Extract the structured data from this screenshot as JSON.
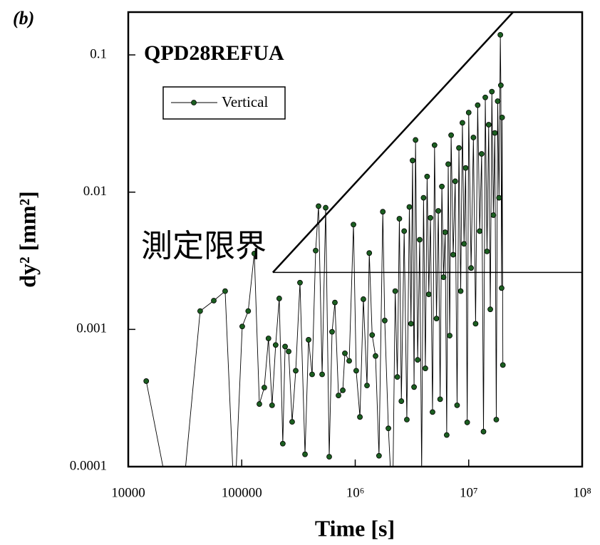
{
  "chart_data": {
    "type": "line",
    "panel_label": "(b)",
    "title": "QPD28REFUA",
    "annotation": "測定限界",
    "xlabel": "Time [s]",
    "ylabel": "dy² [mm²]",
    "log_x": true,
    "log_y": true,
    "xlim": [
      10000,
      100000000
    ],
    "ylim": [
      0.0001,
      0.205
    ],
    "xticks": [
      10000,
      100000,
      {
        "value": 1000000,
        "label": "10⁶"
      },
      {
        "value": 10000000,
        "label": "10⁷"
      },
      {
        "value": 100000000,
        "label": "10⁸"
      }
    ],
    "yticks": [
      0.0001,
      0.001,
      0.01,
      0.1
    ],
    "legend_position": "upper-left",
    "x": [
      14400,
      23800,
      29600,
      43000,
      56700,
      71400,
      86300,
      101000,
      114000,
      129000,
      143000,
      158000,
      172000,
      185000,
      199000,
      214000,
      230000,
      241000,
      259000,
      278000,
      299000,
      326000,
      361000,
      388000,
      417000,
      448000,
      475000,
      511000,
      549000,
      590000,
      625000,
      662000,
      712000,
      777000,
      811000,
      885000,
      965000,
      1020000,
      1100000,
      1180000,
      1270000,
      1330000,
      1410000,
      1510000,
      1620000,
      1750000,
      1820000,
      1960000,
      2050000,
      2150000,
      2250000,
      2350000,
      2450000,
      2550000,
      2700000,
      2850000,
      3000000,
      3100000,
      3200000,
      3300000,
      3400000,
      3550000,
      3700000,
      3850000,
      4000000,
      4150000,
      4300000,
      4450000,
      4600000,
      4800000,
      5000000,
      5200000,
      5400000,
      5600000,
      5800000,
      6000000,
      6200000,
      6400000,
      6600000,
      6800000,
      7000000,
      7300000,
      7600000,
      7900000,
      8200000,
      8500000,
      8800000,
      9100000,
      9400000,
      9700000,
      10000000,
      10500000,
      11000000,
      11500000,
      12000000,
      12500000,
      13000000,
      13500000,
      14000000,
      14500000,
      15000000,
      15500000,
      16000000,
      16500000,
      17000000,
      17500000,
      18000000,
      18500000,
      19000000,
      19200000,
      19500000,
      19700000,
      20000000
    ],
    "series": [
      {
        "name": "Vertical",
        "color": "#1b5e20",
        "values": [
          0.00042,
          5e-05,
          5e-05,
          0.00136,
          0.00162,
          0.0019,
          5e-05,
          0.00105,
          0.00136,
          0.00357,
          0.000286,
          0.000377,
          0.00086,
          0.00028,
          0.00077,
          0.00168,
          0.000147,
          0.00075,
          0.00069,
          0.000212,
          0.0005,
          0.00219,
          0.000123,
          0.00084,
          0.00047,
          0.00375,
          0.0079,
          0.00047,
          0.0077,
          0.000118,
          0.00096,
          0.00157,
          0.00033,
          0.00036,
          0.00067,
          0.00059,
          0.0058,
          0.0005,
          0.00023,
          0.00166,
          0.00039,
          0.0036,
          0.00091,
          0.00064,
          0.00012,
          0.0072,
          0.00116,
          0.00019,
          9e-05,
          8e-05,
          0.0019,
          0.00045,
          0.0064,
          0.0003,
          0.0052,
          0.00022,
          0.0078,
          0.0011,
          0.017,
          0.00038,
          0.024,
          0.0006,
          0.0045,
          9e-05,
          0.0091,
          0.00052,
          0.013,
          0.0018,
          0.0065,
          0.00025,
          0.022,
          0.0012,
          0.0073,
          0.00031,
          0.011,
          0.0024,
          0.0051,
          0.00017,
          0.016,
          0.0009,
          0.026,
          0.0035,
          0.012,
          0.00028,
          0.021,
          0.0019,
          0.032,
          0.0042,
          0.015,
          0.00021,
          0.038,
          0.0028,
          0.025,
          0.0011,
          0.043,
          0.0052,
          0.019,
          0.00018,
          0.049,
          0.0037,
          0.031,
          0.0014,
          0.054,
          0.0068,
          0.027,
          0.00022,
          0.046,
          0.0091,
          0.14,
          0.06,
          0.002,
          0.035,
          0.00055
        ]
      }
    ],
    "reference_lines": [
      {
        "x": [
          188000,
          100000000
        ],
        "y": [
          0.0026,
          0.0026
        ]
      },
      {
        "x": [
          188000,
          24600000
        ],
        "y": [
          0.0026,
          0.205
        ]
      }
    ]
  }
}
